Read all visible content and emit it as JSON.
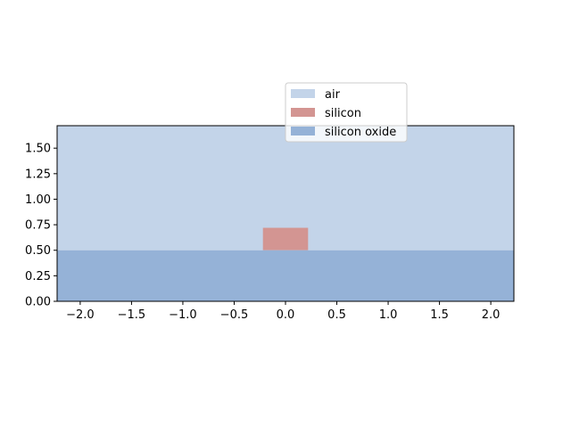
{
  "chart_data": {
    "type": "area",
    "title": "",
    "xlabel": "",
    "ylabel": "",
    "xlim": [
      -2.225,
      2.225
    ],
    "ylim": [
      0.0,
      1.72
    ],
    "xticks": [
      -2.0,
      -1.5,
      -1.0,
      -0.5,
      0.0,
      0.5,
      1.0,
      1.5,
      2.0
    ],
    "xtick_labels": [
      "−2.0",
      "−1.5",
      "−1.0",
      "−0.5",
      "0.0",
      "0.5",
      "1.0",
      "1.5",
      "2.0"
    ],
    "yticks": [
      0.0,
      0.25,
      0.5,
      0.75,
      1.0,
      1.25,
      1.5
    ],
    "ytick_labels": [
      "0.00",
      "0.25",
      "0.50",
      "0.75",
      "1.00",
      "1.25",
      "1.50"
    ],
    "grid": false,
    "legend_position": "upper-right-outside",
    "series": [
      {
        "name": "air",
        "color": "#c3d4e9",
        "x": [
          -2.225,
          2.225
        ],
        "y": [
          0.5,
          1.72
        ]
      },
      {
        "name": "silicon",
        "color": "#d39592",
        "x": [
          -0.22,
          0.22
        ],
        "y": [
          0.5,
          0.72
        ]
      },
      {
        "name": "silicon oxide",
        "color": "#95b2d7",
        "x": [
          -2.225,
          2.225
        ],
        "y": [
          0.0,
          0.5
        ]
      }
    ]
  }
}
